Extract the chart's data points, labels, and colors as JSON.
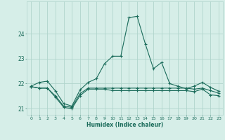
{
  "xlabel": "Humidex (Indice chaleur)",
  "bg_color": "#d6eee8",
  "grid_color": "#b0d4cc",
  "line_color": "#1a6b5a",
  "xlim": [
    -0.5,
    23.5
  ],
  "ylim": [
    20.75,
    25.3
  ],
  "yticks": [
    21,
    22,
    23,
    24
  ],
  "xtick_labels": [
    "0",
    "1",
    "2",
    "3",
    "4",
    "5",
    "6",
    "7",
    "8",
    "9",
    "10",
    "11",
    "12",
    "13",
    "14",
    "15",
    "16",
    "17",
    "18",
    "19",
    "20",
    "21",
    "22",
    "23"
  ],
  "line1_x": [
    0,
    1,
    2,
    3,
    4,
    5,
    6,
    7,
    8,
    9,
    10,
    11,
    12,
    13,
    14,
    15,
    16,
    17,
    18,
    19,
    20,
    21,
    22,
    23
  ],
  "line1_y": [
    21.9,
    22.05,
    22.1,
    21.7,
    21.2,
    21.1,
    21.75,
    22.05,
    22.2,
    22.8,
    23.1,
    23.1,
    24.65,
    24.7,
    23.6,
    22.6,
    22.85,
    22.0,
    21.9,
    21.8,
    21.9,
    22.05,
    21.85,
    21.7
  ],
  "line2_x": [
    0,
    1,
    2,
    3,
    4,
    5,
    6,
    7,
    8,
    9,
    10,
    11,
    12,
    13,
    14,
    15,
    16,
    17,
    18,
    19,
    20,
    21,
    22,
    23
  ],
  "line2_y": [
    21.88,
    21.82,
    21.82,
    21.5,
    21.1,
    21.05,
    21.6,
    21.82,
    21.82,
    21.82,
    21.82,
    21.82,
    21.82,
    21.82,
    21.82,
    21.82,
    21.82,
    21.82,
    21.82,
    21.82,
    21.78,
    21.82,
    21.72,
    21.62
  ],
  "line3_x": [
    0,
    1,
    2,
    3,
    4,
    5,
    6,
    7,
    8,
    9,
    10,
    11,
    12,
    13,
    14,
    15,
    16,
    17,
    18,
    19,
    20,
    21,
    22,
    23
  ],
  "line3_y": [
    21.88,
    21.82,
    21.82,
    21.45,
    21.05,
    21.0,
    21.52,
    21.78,
    21.78,
    21.78,
    21.72,
    21.72,
    21.72,
    21.72,
    21.72,
    21.72,
    21.72,
    21.72,
    21.72,
    21.72,
    21.68,
    21.78,
    21.55,
    21.52
  ]
}
